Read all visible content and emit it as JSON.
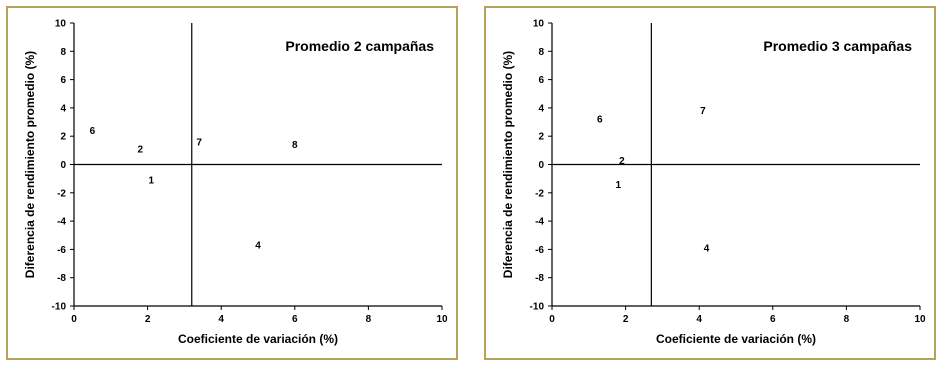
{
  "chart_data": [
    {
      "type": "scatter",
      "title": "Promedio 2 campañas",
      "xlabel": "Coeficiente de variación (%)",
      "ylabel": "Diferencia de rendimiento promedio (%)",
      "xlim": [
        0,
        10
      ],
      "ylim": [
        -10,
        10
      ],
      "x_ticks": [
        "0",
        "2",
        "4",
        "6",
        "8",
        "10"
      ],
      "y_ticks": [
        "10",
        "8",
        "6",
        "4",
        "2",
        "0",
        "-2",
        "-4",
        "-6",
        "-8",
        "-10"
      ],
      "reference_lines": {
        "x": 3.2,
        "y": 0
      },
      "grid": false,
      "points": [
        {
          "label": "6",
          "x": 0.5,
          "y": 2.4
        },
        {
          "label": "2",
          "x": 1.8,
          "y": 1.1
        },
        {
          "label": "1",
          "x": 2.1,
          "y": -1.1
        },
        {
          "label": "7",
          "x": 3.4,
          "y": 1.6
        },
        {
          "label": "8",
          "x": 6.0,
          "y": 1.4
        },
        {
          "label": "4",
          "x": 5.0,
          "y": -5.7
        }
      ]
    },
    {
      "type": "scatter",
      "title": "Promedio 3 campañas",
      "xlabel": "Coeficiente de variación (%)",
      "ylabel": "Diferencia de rendimiento promedio (%)",
      "xlim": [
        0,
        10
      ],
      "ylim": [
        -10,
        10
      ],
      "x_ticks": [
        "0",
        "2",
        "4",
        "6",
        "8",
        "10"
      ],
      "y_ticks": [
        "10",
        "8",
        "6",
        "4",
        "2",
        "0",
        "-2",
        "-4",
        "-6",
        "-8",
        "-10"
      ],
      "reference_lines": {
        "x": 2.7,
        "y": 0
      },
      "grid": false,
      "points": [
        {
          "label": "6",
          "x": 1.3,
          "y": 3.2
        },
        {
          "label": "7",
          "x": 4.1,
          "y": 3.8
        },
        {
          "label": "2",
          "x": 1.9,
          "y": 0.3
        },
        {
          "label": "1",
          "x": 1.8,
          "y": -1.4
        },
        {
          "label": "4",
          "x": 4.2,
          "y": -5.9
        }
      ]
    }
  ]
}
